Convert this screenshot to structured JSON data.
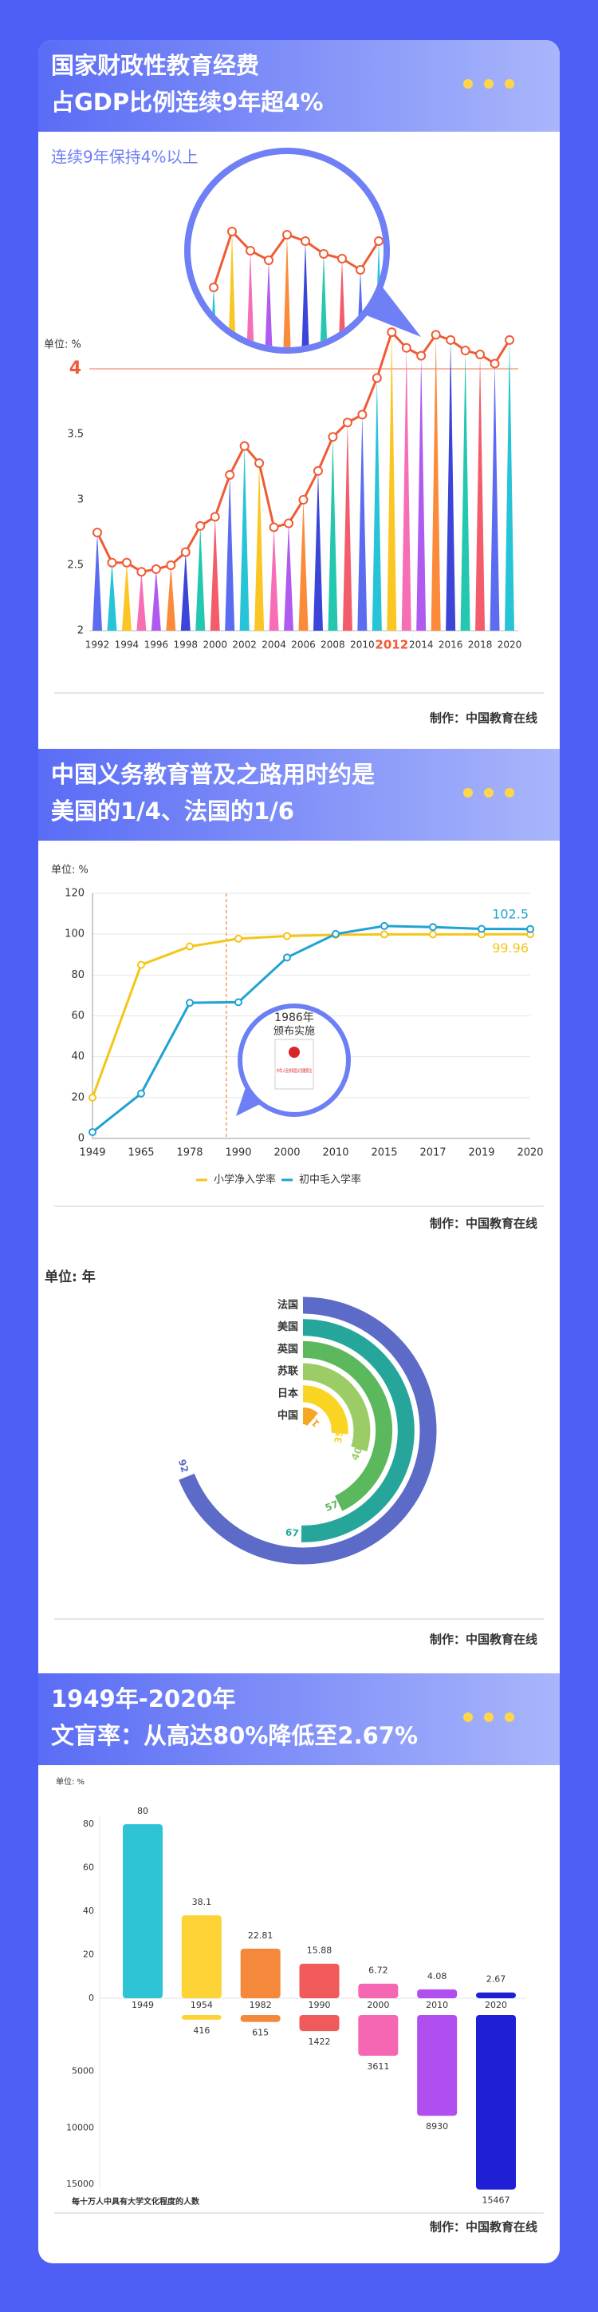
{
  "chart_data": [
    {
      "type": "lollipop",
      "title": [
        "国家财政性教育经费",
        "占GDP比例连续9年超4%"
      ],
      "subtitle": "连续9年保持4%以上",
      "y_unit": "单位: %",
      "x": [
        1992,
        1993,
        1994,
        1995,
        1996,
        1997,
        1998,
        1999,
        2000,
        2001,
        2002,
        2003,
        2004,
        2005,
        2006,
        2007,
        2008,
        2009,
        2010,
        2011,
        2012,
        2013,
        2014,
        2015,
        2016,
        2017,
        2018,
        2019,
        2020
      ],
      "values": [
        2.75,
        2.52,
        2.52,
        2.45,
        2.47,
        2.5,
        2.6,
        2.8,
        2.87,
        3.19,
        3.41,
        3.28,
        2.79,
        2.82,
        3.0,
        3.22,
        3.48,
        3.59,
        3.65,
        3.93,
        4.28,
        4.16,
        4.1,
        4.26,
        4.22,
        4.14,
        4.11,
        4.04,
        4.22
      ],
      "line_color": "#ef5b35",
      "palette": [
        "#5b6cf0",
        "#27c4d8",
        "#f9c623",
        "#f66fb6",
        "#b05bf0",
        "#fb8b3a",
        "#3b45d8",
        "#24c7b0",
        "#f25c6b"
      ],
      "xlim": [
        1992,
        2020
      ],
      "xticks": [
        1992,
        1994,
        1996,
        1998,
        2000,
        2002,
        2004,
        2006,
        2008,
        2010,
        2012,
        2014,
        2016,
        2018,
        2020
      ],
      "ylim": [
        2,
        4.5
      ],
      "yticks": [
        2,
        2.5,
        3,
        3.5,
        4
      ],
      "highlight_xtick": 2012,
      "highlight_ytick": 4,
      "highlight_color": "#ef5b35",
      "source": "制作：中国教育在线"
    },
    {
      "type": "line",
      "title": [
        "中国义务教育普及之路用时约是",
        "美国的1/4、法国的1/6"
      ],
      "y_unit": "单位: %",
      "categories": [
        "1949",
        "1965",
        "1978",
        "1990",
        "2000",
        "2010",
        "2015",
        "2017",
        "2019",
        "2020"
      ],
      "series": [
        {
          "name": "小学净入学率",
          "color": "#f5c518",
          "values": [
            20,
            85,
            94,
            97.8,
            99.1,
            99.7,
            99.9,
            99.9,
            99.94,
            99.96
          ]
        },
        {
          "name": "初中毛入学率",
          "color": "#1fa3d4",
          "values": [
            3.1,
            22,
            66.4,
            66.7,
            88.6,
            100.1,
            104,
            103.5,
            102.6,
            102.5
          ]
        }
      ],
      "ylim": [
        0,
        120
      ],
      "yticks": [
        0,
        20,
        40,
        60,
        80,
        100,
        120
      ],
      "grid": true,
      "annotation": {
        "year": "1986年",
        "text": "颁布实施",
        "book": "中华人民共和国义务教育法"
      },
      "source": "制作：中国教育在线"
    },
    {
      "type": "radial_bar",
      "y_unit": "单位: 年",
      "categories": [
        "法国",
        "美国",
        "英国",
        "苏联",
        "日本",
        "中国"
      ],
      "values": [
        92,
        67,
        57,
        40,
        35,
        15
      ],
      "colors": [
        "#5c6bc8",
        "#26a69a",
        "#5cb85c",
        "#9ccc65",
        "#f9d423",
        "#f5a623"
      ],
      "xlim": [
        0,
        100
      ],
      "source": "制作：中国教育在线"
    },
    {
      "type": "bar",
      "title": [
        "1949年-2020年",
        "文盲率：从高达80%降低至2.67%"
      ],
      "y_unit": "单位: %",
      "categories": [
        "1949",
        "1954",
        "1982",
        "1990",
        "2000",
        "2010",
        "2020"
      ],
      "colors": [
        "#2ec4d6",
        "#fdd235",
        "#f5893b",
        "#f05a5a",
        "#f566b3",
        "#b04ef0",
        "#1f1fd6"
      ],
      "series": [
        {
          "values": [
            80,
            38.1,
            22.81,
            15.88,
            6.72,
            4.08,
            2.67
          ]
        },
        {
          "name": "每十万人中具有大学文化程度的人数",
          "axis": "y2",
          "values": [
            null,
            416,
            615,
            1422,
            3611,
            8930,
            15467
          ]
        }
      ],
      "ylim": [
        0,
        80
      ],
      "yticks": [
        0,
        20,
        40,
        60,
        80
      ],
      "y2lim": [
        0,
        15000
      ],
      "y2ticks": [
        5000,
        10000,
        15000
      ],
      "y2_inverted": true,
      "source": "制作：中国教育在线"
    }
  ]
}
